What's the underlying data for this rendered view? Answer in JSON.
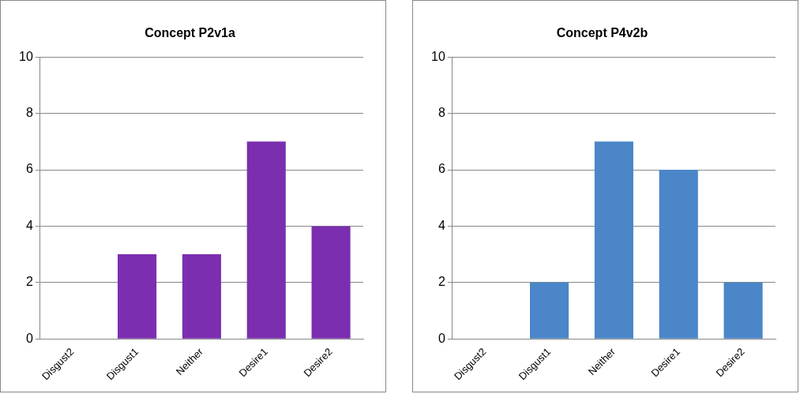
{
  "chart_data": [
    {
      "type": "bar",
      "title": "Concept P2v1a",
      "categories": [
        "Disgust2",
        "Disgust1",
        "Neither",
        "Desire1",
        "Desire2"
      ],
      "values": [
        0,
        3,
        3,
        7,
        4
      ],
      "color": "#7b2fb0",
      "ylim": [
        0,
        10
      ],
      "yticks": [
        0,
        2,
        4,
        6,
        8,
        10
      ],
      "grid": "y",
      "legend": false
    },
    {
      "type": "bar",
      "title": "Concept P4v2b",
      "categories": [
        "Disgust2",
        "Disgust1",
        "Neither",
        "Desire1",
        "Desire2"
      ],
      "values": [
        0,
        2,
        7,
        6,
        2
      ],
      "color": "#4a86c8",
      "ylim": [
        0,
        10
      ],
      "yticks": [
        0,
        2,
        4,
        6,
        8,
        10
      ],
      "grid": "y",
      "legend": false
    }
  ]
}
